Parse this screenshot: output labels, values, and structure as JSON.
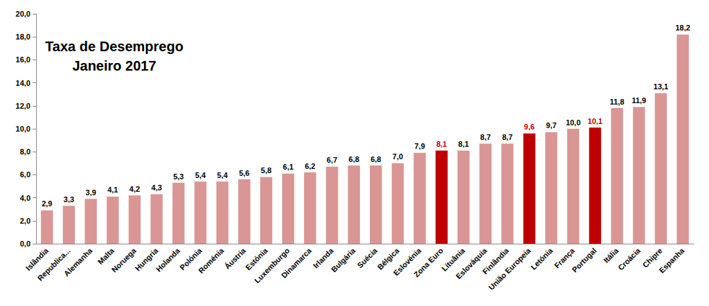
{
  "chart_data": {
    "type": "bar",
    "title": "Taxa de Desemprego",
    "subtitle": "Janeiro 2017",
    "categories": [
      "Islândia",
      "Republica...",
      "Alemanha",
      "Malta",
      "Noruega",
      "Hungria",
      "Holanda",
      "Polónia",
      "Roménia",
      "Áustria",
      "Estónia",
      "Luxemburgo",
      "Dinamarca",
      "Irlanda",
      "Bulgária",
      "Suécia",
      "Bélgica",
      "Eslovénia",
      "Zona Euro",
      "Lituânia",
      "Eslováquia",
      "Finlândia",
      "União Europeia",
      "Letónia",
      "França",
      "Portugal",
      "Itália",
      "Croácia",
      "Chipre",
      "Espanha"
    ],
    "values": [
      2.9,
      3.3,
      3.9,
      4.1,
      4.2,
      4.3,
      5.3,
      5.4,
      5.4,
      5.6,
      5.8,
      6.1,
      6.2,
      6.7,
      6.8,
      6.8,
      7.0,
      7.9,
      8.1,
      8.1,
      8.7,
      8.7,
      9.6,
      9.7,
      10.0,
      10.1,
      11.8,
      11.9,
      13.1,
      18.2
    ],
    "value_labels": [
      "2,9",
      "3,3",
      "3,9",
      "4,1",
      "4,2",
      "4,3",
      "5,3",
      "5,4",
      "5,4",
      "5,6",
      "5,8",
      "6,1",
      "6,2",
      "6,7",
      "6,8",
      "6,8",
      "7,0",
      "7,9",
      "8,1",
      "8,1",
      "8,7",
      "8,7",
      "9,6",
      "9,7",
      "10,0",
      "10,1",
      "11,8",
      "11,9",
      "13,1",
      "18,2"
    ],
    "color": "#d99694",
    "colors": [
      "#d99694",
      "#d99694",
      "#d99694",
      "#d99694",
      "#d99694",
      "#d99694",
      "#d99694",
      "#d99694",
      "#d99694",
      "#d99694",
      "#d99694",
      "#d99694",
      "#d99694",
      "#d99694",
      "#d99694",
      "#d99694",
      "#d99694",
      "#d99694",
      "#c00000",
      "#d99694",
      "#d99694",
      "#d99694",
      "#c00000",
      "#d99694",
      "#d99694",
      "#c00000",
      "#d99694",
      "#d99694",
      "#d99694",
      "#d99694"
    ],
    "ylim": [
      0,
      20
    ],
    "yticks": [
      {
        "value": 0,
        "label": "0,0"
      },
      {
        "value": 2,
        "label": "2,0"
      },
      {
        "value": 4,
        "label": "4,0"
      },
      {
        "value": 6,
        "label": "6,0"
      },
      {
        "value": 8,
        "label": "8,0"
      },
      {
        "value": 10,
        "label": "10,0"
      },
      {
        "value": 12,
        "label": "12,0"
      },
      {
        "value": 14,
        "label": "14,0"
      },
      {
        "value": 16,
        "label": "16,0"
      },
      {
        "value": 18,
        "label": "18,0"
      },
      {
        "value": 20,
        "label": "20,0"
      }
    ],
    "grid": false,
    "data_labels": true
  }
}
